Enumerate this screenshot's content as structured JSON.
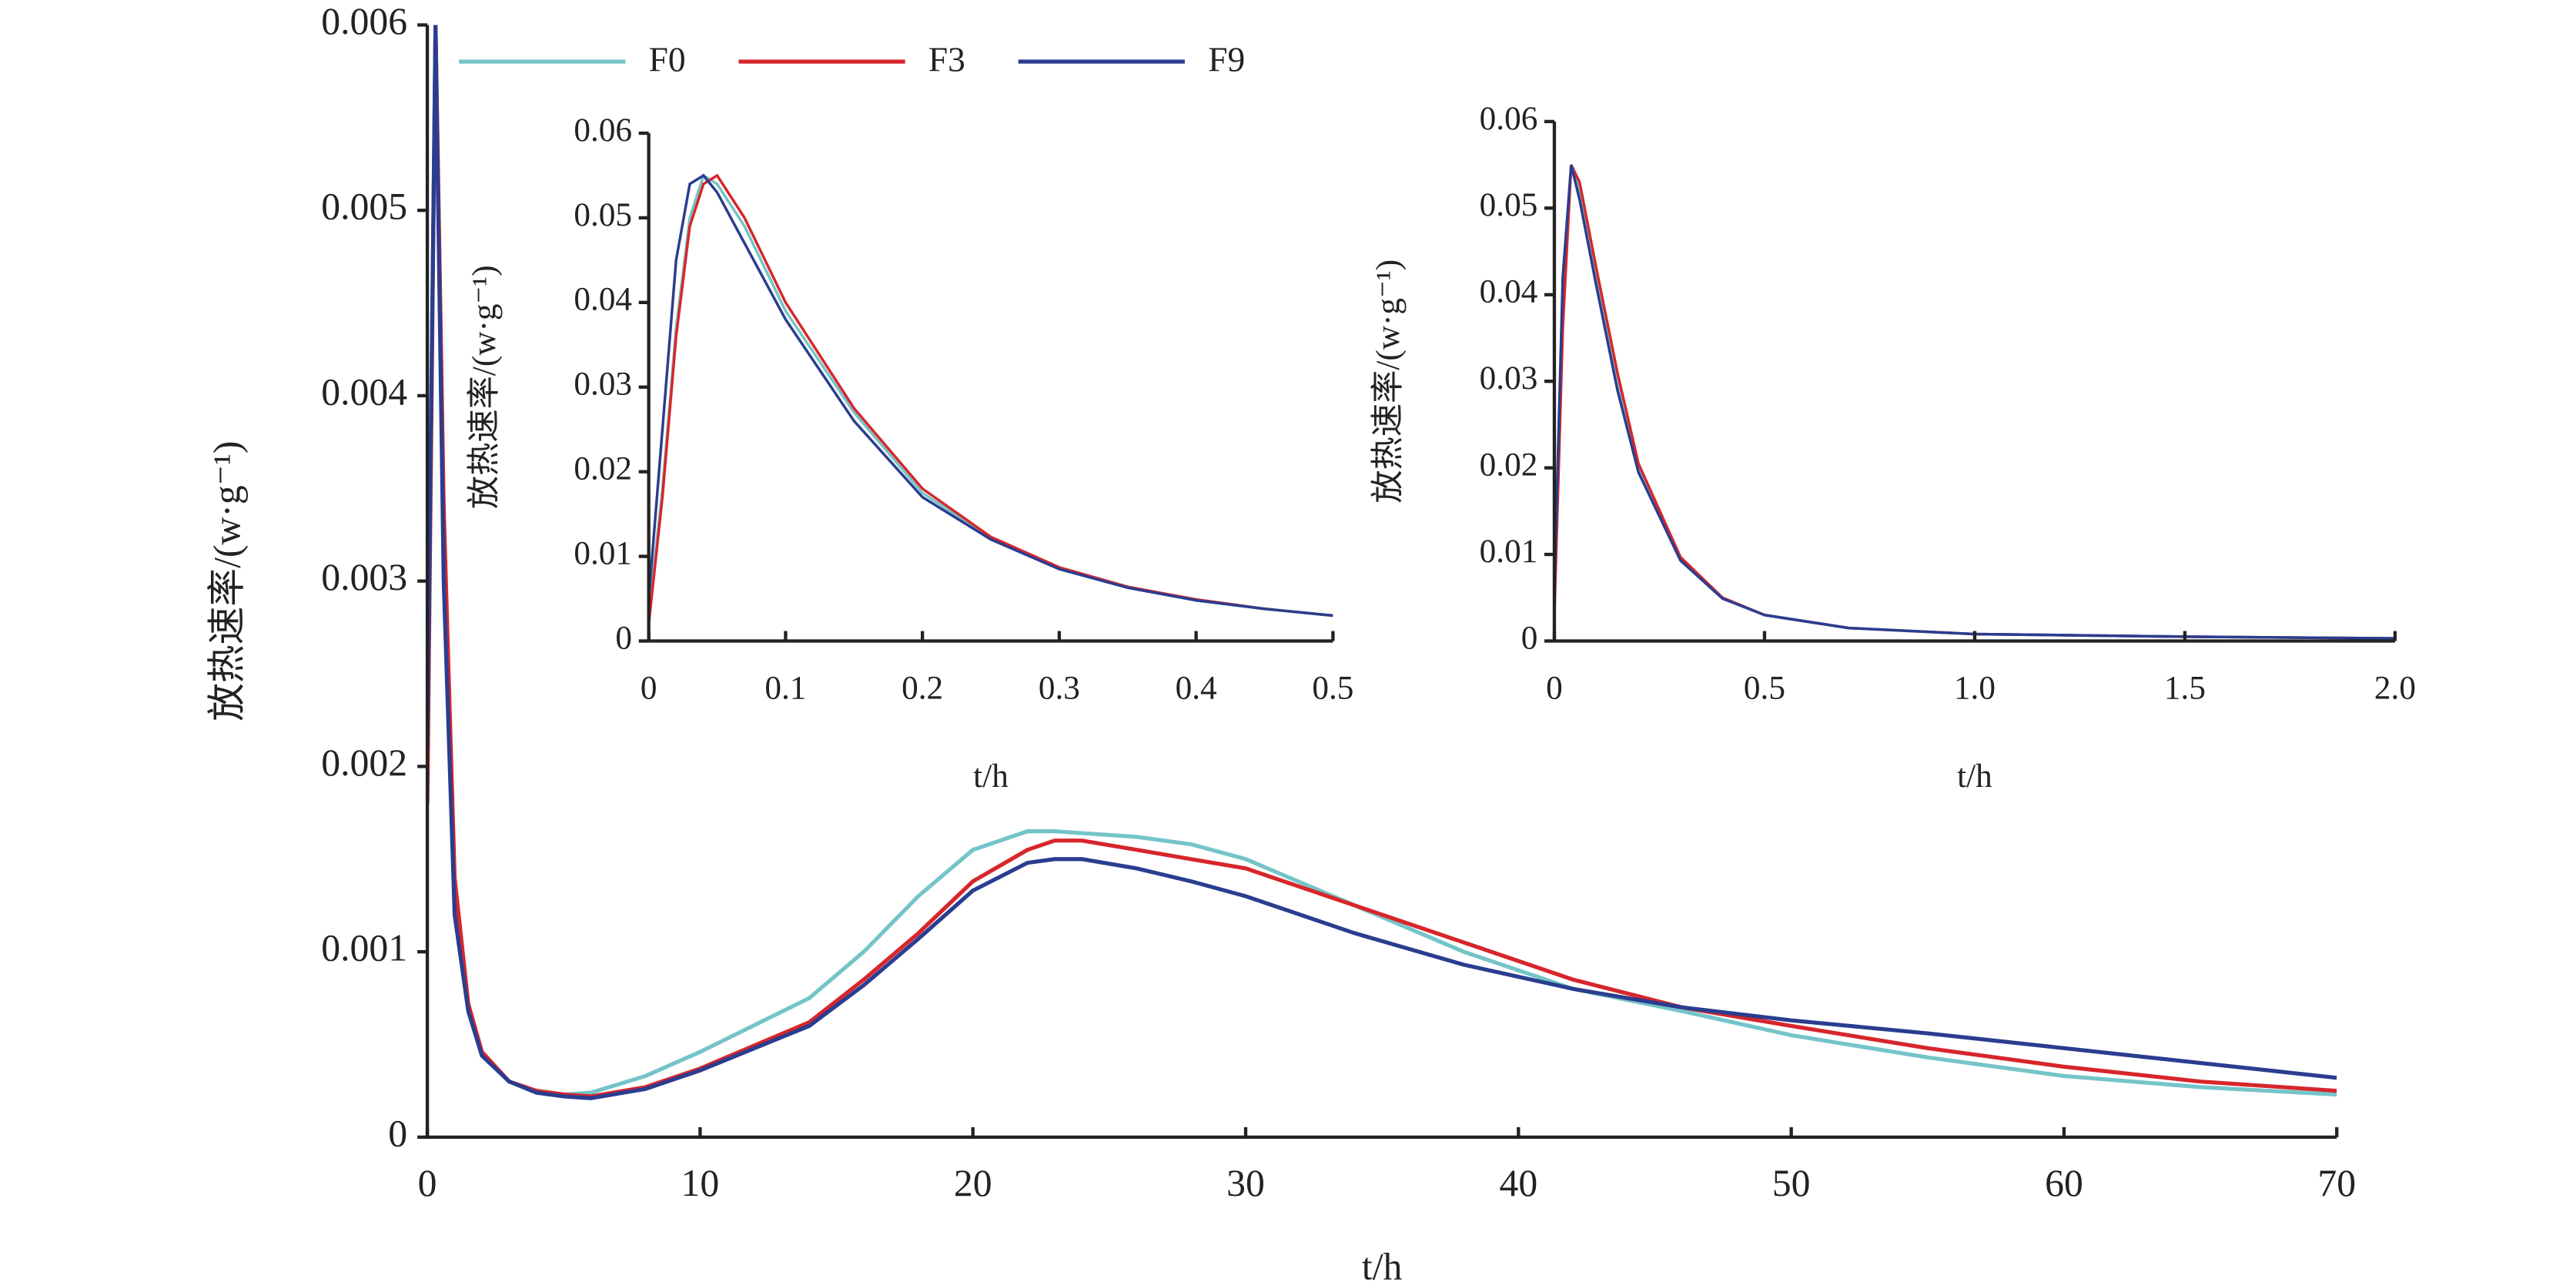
{
  "chart_data": [
    {
      "type": "line",
      "xlabel": "t/h",
      "ylabel": "放热速率/(w·g⁻¹)",
      "legend": "top",
      "x": [
        0,
        0.3,
        0.6,
        1,
        1.5,
        2,
        3,
        4,
        5,
        6,
        8,
        10,
        14,
        16,
        18,
        20,
        22,
        23,
        24,
        26,
        28,
        30,
        34,
        38,
        42,
        46,
        50,
        55,
        60,
        65,
        70
      ],
      "xlim": [
        0,
        70
      ],
      "xticks": [
        0,
        10,
        20,
        30,
        40,
        50,
        60,
        70
      ],
      "ylim": [
        0,
        0.006
      ],
      "yticks": [
        0,
        0.001,
        0.002,
        0.003,
        0.004,
        0.005,
        0.006
      ],
      "series": [
        {
          "name": "F0",
          "color": "#74c4c8",
          "values": [
            0.002,
            0.006,
            0.0032,
            0.0013,
            0.0007,
            0.00045,
            0.0003,
            0.00025,
            0.00023,
            0.00024,
            0.00033,
            0.00046,
            0.00075,
            0.001,
            0.0013,
            0.00155,
            0.00165,
            0.00165,
            0.00164,
            0.00162,
            0.00158,
            0.0015,
            0.00125,
            0.001,
            0.0008,
            0.00068,
            0.00055,
            0.00043,
            0.00033,
            0.00027,
            0.00023
          ]
        },
        {
          "name": "F3",
          "color": "#d7262b",
          "values": [
            0.0018,
            0.006,
            0.0034,
            0.0014,
            0.00072,
            0.00046,
            0.0003,
            0.00025,
            0.00023,
            0.00022,
            0.00027,
            0.00037,
            0.00062,
            0.00085,
            0.0011,
            0.00138,
            0.00155,
            0.0016,
            0.0016,
            0.00155,
            0.0015,
            0.00145,
            0.00125,
            0.00105,
            0.00085,
            0.0007,
            0.0006,
            0.00048,
            0.00038,
            0.0003,
            0.00025
          ]
        },
        {
          "name": "F9",
          "color": "#2a3d8f",
          "values": [
            0.0021,
            0.006,
            0.003,
            0.0012,
            0.00068,
            0.00044,
            0.0003,
            0.00024,
            0.00022,
            0.00021,
            0.00026,
            0.00036,
            0.0006,
            0.00082,
            0.00107,
            0.00133,
            0.00148,
            0.0015,
            0.0015,
            0.00145,
            0.00138,
            0.0013,
            0.0011,
            0.00093,
            0.0008,
            0.0007,
            0.00063,
            0.00056,
            0.00048,
            0.0004,
            0.00032
          ]
        }
      ]
    },
    {
      "type": "line",
      "xlabel": "t/h",
      "ylabel": "放热速率/(w·g⁻¹)",
      "x": [
        0,
        0.01,
        0.02,
        0.03,
        0.04,
        0.05,
        0.07,
        0.1,
        0.15,
        0.2,
        0.25,
        0.3,
        0.35,
        0.4,
        0.45,
        0.5
      ],
      "xlim": [
        0,
        0.5
      ],
      "xticks": [
        0,
        0.1,
        0.2,
        0.3,
        0.4,
        0.5
      ],
      "ylim": [
        0,
        0.06
      ],
      "yticks": [
        0,
        0.01,
        0.02,
        0.03,
        0.04,
        0.05,
        0.06
      ],
      "series": [
        {
          "color": "#74c4c8",
          "values": [
            0.003,
            0.018,
            0.037,
            0.05,
            0.055,
            0.054,
            0.049,
            0.039,
            0.027,
            0.0175,
            0.0122,
            0.0087,
            0.0064,
            0.0049,
            0.0038,
            0.003
          ]
        },
        {
          "color": "#d7262b",
          "values": [
            0.002,
            0.017,
            0.036,
            0.049,
            0.054,
            0.055,
            0.05,
            0.04,
            0.0275,
            0.018,
            0.0123,
            0.0087,
            0.0064,
            0.0049,
            0.0038,
            0.003
          ]
        },
        {
          "color": "#2a3d8f",
          "values": [
            0.005,
            0.025,
            0.045,
            0.054,
            0.055,
            0.053,
            0.047,
            0.038,
            0.026,
            0.017,
            0.012,
            0.0085,
            0.0063,
            0.0048,
            0.0038,
            0.003
          ]
        }
      ]
    },
    {
      "type": "line",
      "xlabel": "t/h",
      "ylabel": "放热速率/(w·g⁻¹)",
      "x": [
        0,
        0.02,
        0.04,
        0.06,
        0.1,
        0.15,
        0.2,
        0.3,
        0.4,
        0.5,
        0.7,
        1,
        1.5,
        2
      ],
      "xlim": [
        0,
        2
      ],
      "xticks": [
        0,
        0.5,
        {
          "value": 1,
          "label": "1.0"
        },
        1.5,
        {
          "value": 2,
          "label": "2.0"
        }
      ],
      "ylim": [
        0,
        0.06
      ],
      "yticks": [
        0,
        0.01,
        0.02,
        0.03,
        0.04,
        0.05,
        0.06
      ],
      "series": [
        {
          "color": "#74c4c8",
          "values": [
            0.004,
            0.038,
            0.055,
            0.052,
            0.042,
            0.03,
            0.02,
            0.0095,
            0.005,
            0.003,
            0.0015,
            0.0008,
            0.0005,
            0.0003
          ]
        },
        {
          "color": "#d7262b",
          "values": [
            0.003,
            0.036,
            0.055,
            0.053,
            0.043,
            0.031,
            0.0205,
            0.0097,
            0.005,
            0.003,
            0.0015,
            0.0008,
            0.0005,
            0.0003
          ]
        },
        {
          "color": "#2a3d8f",
          "values": [
            0.006,
            0.042,
            0.055,
            0.051,
            0.041,
            0.029,
            0.0195,
            0.0093,
            0.0049,
            0.003,
            0.0015,
            0.0008,
            0.0005,
            0.0003
          ]
        }
      ]
    }
  ]
}
